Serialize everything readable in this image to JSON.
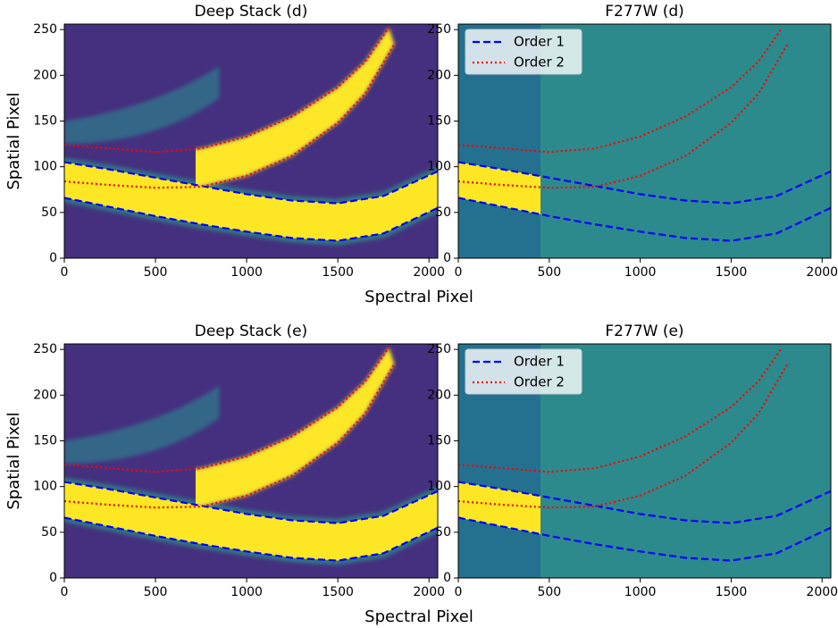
{
  "chart_data": [
    {
      "type": "line",
      "title": "Deep Stack (d)",
      "ylabel": "Spatial Pixel",
      "xlabel": "Spectral Pixel",
      "xlim": [
        0,
        2048
      ],
      "ylim": [
        0,
        256
      ],
      "xticks": [
        0,
        500,
        1000,
        1500,
        2000
      ],
      "yticks": [
        0,
        50,
        100,
        150,
        200,
        250
      ],
      "background": "deep",
      "series": [
        {
          "name": "Order 1",
          "color": "#0000ff",
          "linestyle": "dashed",
          "curves": [
            {
              "x": [
                0,
                250,
                500,
                750,
                1000,
                1250,
                1500,
                1750,
                2048
              ],
              "values": [
                105,
                97,
                88,
                79,
                70,
                63,
                60,
                68,
                95
              ]
            },
            {
              "x": [
                0,
                250,
                500,
                750,
                1000,
                1250,
                1500,
                1750,
                2048
              ],
              "values": [
                66,
                56,
                46,
                37,
                29,
                22,
                19,
                27,
                55
              ]
            }
          ]
        },
        {
          "name": "Order 2",
          "color": "#ff0000",
          "linestyle": "dotted",
          "curves": [
            {
              "x": [
                0,
                250,
                500,
                750,
                1000,
                1250,
                1500,
                1650,
                1780
              ],
              "values": [
                124,
                120,
                116,
                120,
                133,
                155,
                187,
                215,
                252
              ]
            },
            {
              "x": [
                0,
                250,
                500,
                750,
                1000,
                1250,
                1500,
                1650,
                1810
              ],
              "values": [
                84,
                80,
                77,
                78,
                90,
                112,
                148,
                180,
                234
              ]
            }
          ]
        }
      ]
    },
    {
      "type": "line",
      "title": "F277W (d)",
      "xlim": [
        0,
        2048
      ],
      "ylim": [
        0,
        256
      ],
      "xticks": [
        0,
        500,
        1000,
        1500,
        2000
      ],
      "yticks": [
        0,
        50,
        100,
        150,
        200,
        250
      ],
      "background": "filter",
      "legend": "upper left",
      "series": [
        {
          "name": "Order 1",
          "color": "#0000ff",
          "linestyle": "dashed",
          "curves": [
            {
              "x": [
                0,
                250,
                500,
                750,
                1000,
                1250,
                1500,
                1750,
                2048
              ],
              "values": [
                105,
                97,
                88,
                79,
                70,
                63,
                60,
                68,
                95
              ]
            },
            {
              "x": [
                0,
                250,
                500,
                750,
                1000,
                1250,
                1500,
                1750,
                2048
              ],
              "values": [
                66,
                56,
                46,
                37,
                29,
                22,
                19,
                27,
                55
              ]
            }
          ]
        },
        {
          "name": "Order 2",
          "color": "#ff0000",
          "linestyle": "dotted",
          "curves": [
            {
              "x": [
                0,
                250,
                500,
                750,
                1000,
                1250,
                1500,
                1650,
                1780
              ],
              "values": [
                124,
                120,
                116,
                120,
                133,
                155,
                187,
                215,
                252
              ]
            },
            {
              "x": [
                0,
                250,
                500,
                750,
                1000,
                1250,
                1500,
                1650,
                1810
              ],
              "values": [
                84,
                80,
                77,
                78,
                90,
                112,
                148,
                180,
                234
              ]
            }
          ]
        }
      ]
    },
    {
      "type": "line",
      "title": "Deep Stack (e)",
      "ylabel": "Spatial Pixel",
      "xlabel": "Spectral Pixel",
      "xlim": [
        0,
        2048
      ],
      "ylim": [
        0,
        256
      ],
      "xticks": [
        0,
        500,
        1000,
        1500,
        2000
      ],
      "yticks": [
        0,
        50,
        100,
        150,
        200,
        250
      ],
      "background": "deep",
      "series": [
        {
          "name": "Order 1",
          "color": "#0000ff",
          "linestyle": "dashed",
          "curves": [
            {
              "x": [
                0,
                250,
                500,
                750,
                1000,
                1250,
                1500,
                1750,
                2048
              ],
              "values": [
                105,
                97,
                88,
                79,
                70,
                63,
                60,
                68,
                95
              ]
            },
            {
              "x": [
                0,
                250,
                500,
                750,
                1000,
                1250,
                1500,
                1750,
                2048
              ],
              "values": [
                66,
                56,
                46,
                37,
                29,
                22,
                19,
                27,
                55
              ]
            }
          ]
        },
        {
          "name": "Order 2",
          "color": "#ff0000",
          "linestyle": "dotted",
          "curves": [
            {
              "x": [
                0,
                250,
                500,
                750,
                1000,
                1250,
                1500,
                1650,
                1780
              ],
              "values": [
                124,
                120,
                116,
                120,
                133,
                155,
                187,
                215,
                252
              ]
            },
            {
              "x": [
                0,
                250,
                500,
                750,
                1000,
                1250,
                1500,
                1650,
                1810
              ],
              "values": [
                84,
                80,
                77,
                78,
                90,
                112,
                148,
                180,
                234
              ]
            }
          ]
        }
      ]
    },
    {
      "type": "line",
      "title": "F277W (e)",
      "xlim": [
        0,
        2048
      ],
      "ylim": [
        0,
        256
      ],
      "xticks": [
        0,
        500,
        1000,
        1500,
        2000
      ],
      "yticks": [
        0,
        50,
        100,
        150,
        200,
        250
      ],
      "background": "filter",
      "legend": "upper left",
      "series": [
        {
          "name": "Order 1",
          "color": "#0000ff",
          "linestyle": "dashed",
          "curves": [
            {
              "x": [
                0,
                250,
                500,
                750,
                1000,
                1250,
                1500,
                1750,
                2048
              ],
              "values": [
                105,
                97,
                88,
                79,
                70,
                63,
                60,
                68,
                95
              ]
            },
            {
              "x": [
                0,
                250,
                500,
                750,
                1000,
                1250,
                1500,
                1750,
                2048
              ],
              "values": [
                66,
                56,
                46,
                37,
                29,
                22,
                19,
                27,
                55
              ]
            }
          ]
        },
        {
          "name": "Order 2",
          "color": "#ff0000",
          "linestyle": "dotted",
          "curves": [
            {
              "x": [
                0,
                250,
                500,
                750,
                1000,
                1250,
                1500,
                1650,
                1780
              ],
              "values": [
                124,
                120,
                116,
                120,
                133,
                155,
                187,
                215,
                252
              ]
            },
            {
              "x": [
                0,
                250,
                500,
                750,
                1000,
                1250,
                1500,
                1650,
                1810
              ],
              "values": [
                84,
                80,
                77,
                78,
                90,
                112,
                148,
                180,
                234
              ]
            }
          ]
        }
      ]
    }
  ]
}
